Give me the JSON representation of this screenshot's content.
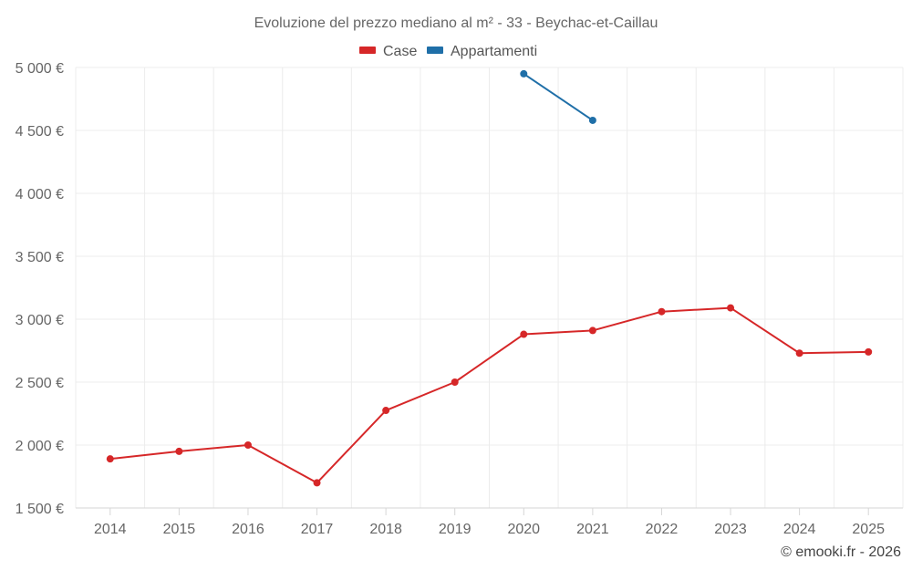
{
  "chart_data": {
    "type": "line",
    "title": "Evoluzione del prezzo mediano al m² - 33 - Beychac-et-Caillau",
    "categories": [
      "2014",
      "2015",
      "2016",
      "2017",
      "2018",
      "2019",
      "2020",
      "2021",
      "2022",
      "2023",
      "2024",
      "2025"
    ],
    "series": [
      {
        "name": "Case",
        "color": "#d62728",
        "values": [
          1890,
          1950,
          2000,
          1700,
          2275,
          2500,
          2880,
          2910,
          3060,
          3090,
          2730,
          2740
        ]
      },
      {
        "name": "Appartamenti",
        "color": "#1f6fa8",
        "values": [
          null,
          null,
          null,
          null,
          null,
          null,
          4950,
          4580,
          null,
          null,
          null,
          null
        ]
      }
    ],
    "ylim": [
      1500,
      5000
    ],
    "yticks": [
      1500,
      2000,
      2500,
      3000,
      3500,
      4000,
      4500,
      5000
    ],
    "ytick_labels": [
      "1 500 €",
      "2 000 €",
      "2 500 €",
      "3 000 €",
      "3 500 €",
      "4 000 €",
      "4 500 €",
      "5 000 €"
    ],
    "xlabel": "",
    "ylabel": "",
    "legend_position": "top-center",
    "grid": true
  },
  "credit": "© emooki.fr - 2026"
}
